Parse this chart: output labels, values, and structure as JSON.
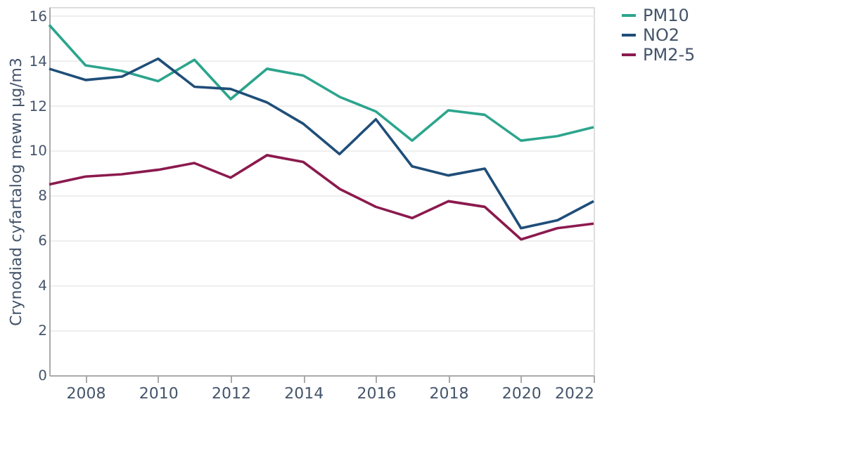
{
  "chart_data": {
    "type": "line",
    "ylabel": "Crynodiad cyfartalog mewn µg/m3",
    "x": [
      2007,
      2008,
      2009,
      2010,
      2011,
      2012,
      2013,
      2014,
      2015,
      2016,
      2017,
      2018,
      2019,
      2020,
      2021,
      2022
    ],
    "series": [
      {
        "name": "PM10",
        "color": "#2ca58d",
        "values": [
          15.6,
          13.8,
          13.55,
          13.1,
          14.05,
          12.3,
          13.65,
          13.35,
          12.4,
          11.75,
          10.45,
          11.8,
          11.6,
          10.45,
          10.65,
          11.05
        ]
      },
      {
        "name": "NO2",
        "color": "#1f4e79",
        "values": [
          13.65,
          13.15,
          13.3,
          14.1,
          12.85,
          12.75,
          12.15,
          11.2,
          9.85,
          11.4,
          9.3,
          8.9,
          9.2,
          6.55,
          6.9,
          7.75
        ]
      },
      {
        "name": "PM2-5",
        "color": "#8b1a4e",
        "values": [
          8.5,
          8.85,
          8.95,
          9.15,
          9.45,
          8.8,
          9.8,
          9.5,
          8.3,
          7.5,
          7.0,
          7.75,
          7.5,
          6.05,
          6.55,
          6.75
        ]
      }
    ],
    "xlim": [
      2007,
      2022
    ],
    "xticks": [
      2008,
      2010,
      2012,
      2014,
      2016,
      2018,
      2020,
      2022
    ],
    "ylim": [
      0,
      16.4
    ],
    "yticks": [
      0,
      2,
      4,
      6,
      8,
      10,
      12,
      14,
      16
    ],
    "grid": "y",
    "legend": "top right",
    "marker": "none",
    "line_style": "solid"
  }
}
